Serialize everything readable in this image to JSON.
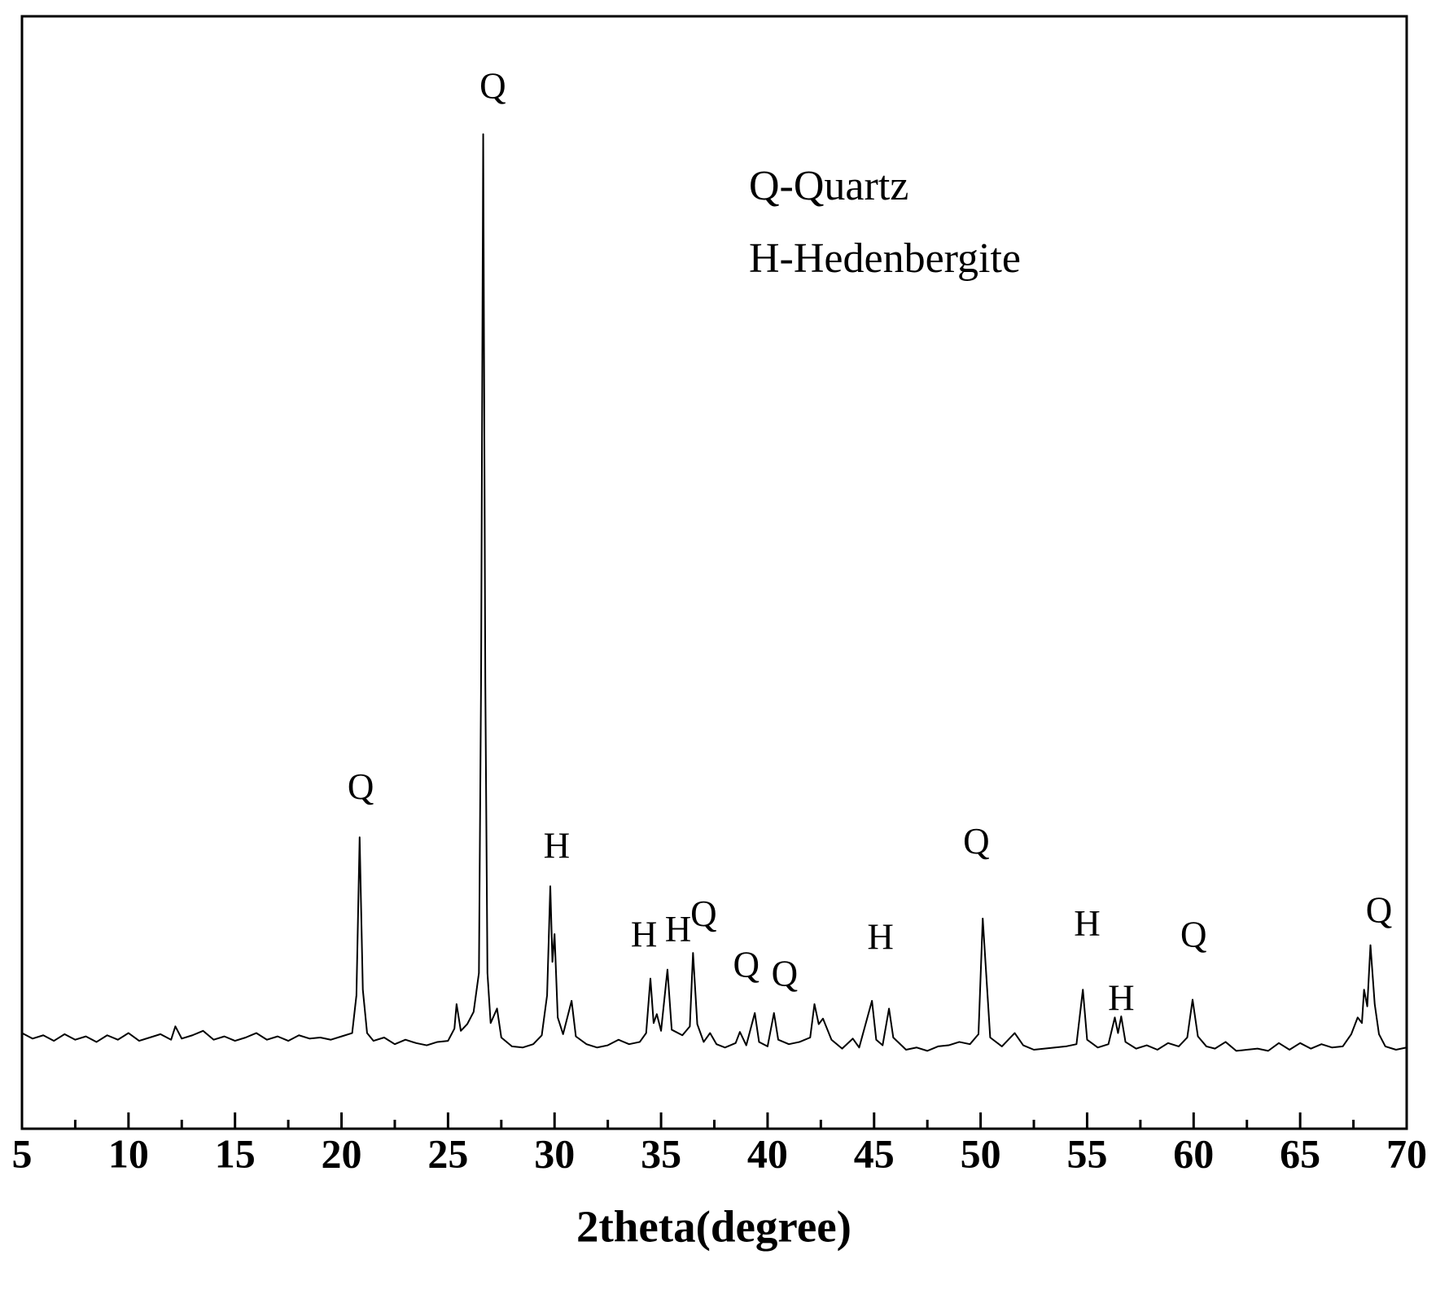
{
  "chart_data": {
    "type": "line",
    "xlabel": "2theta(degree)",
    "notes": [
      "Q-Quartz",
      "H-Hedenbergite"
    ],
    "xlim": [
      5,
      70
    ],
    "ylim": [
      0,
      100
    ],
    "xticks": [
      5,
      10,
      15,
      20,
      25,
      30,
      35,
      40,
      45,
      50,
      55,
      60,
      65,
      70
    ],
    "xminorticks": [
      7.5,
      12.5,
      17.5,
      22.5,
      27.5,
      32.5,
      37.5,
      42.5,
      47.5,
      52.5,
      57.5,
      62.5,
      67.5
    ],
    "color": "#000000",
    "x": [
      5,
      5.5,
      6,
      6.5,
      7,
      7.5,
      8,
      8.5,
      9,
      9.5,
      10,
      10.5,
      11,
      11.5,
      12,
      12.2,
      12.5,
      13,
      13.5,
      14,
      14.5,
      15,
      15.5,
      16,
      16.5,
      17,
      17.5,
      18,
      18.5,
      19,
      19.5,
      20,
      20.5,
      20.7,
      20.85,
      21.0,
      21.2,
      21.5,
      22,
      22.5,
      23,
      23.5,
      24,
      24.5,
      25,
      25.3,
      25.4,
      25.6,
      25.9,
      26.2,
      26.45,
      26.55,
      26.65,
      26.75,
      26.85,
      27.0,
      27.3,
      27.5,
      28,
      28.5,
      29,
      29.4,
      29.65,
      29.8,
      29.9,
      30.0,
      30.15,
      30.4,
      30.8,
      31.0,
      31.5,
      32,
      32.5,
      33,
      33.5,
      34,
      34.3,
      34.5,
      34.65,
      34.8,
      35.0,
      35.3,
      35.5,
      36.0,
      36.35,
      36.5,
      36.7,
      37,
      37.3,
      37.6,
      38,
      38.5,
      38.7,
      39.0,
      39.4,
      39.6,
      40,
      40.3,
      40.5,
      41,
      41.5,
      42,
      42.2,
      42.4,
      42.6,
      43,
      43.5,
      44,
      44.3,
      44.9,
      45.1,
      45.4,
      45.7,
      45.9,
      46.5,
      47,
      47.5,
      48,
      48.5,
      49,
      49.5,
      49.9,
      50.1,
      50.25,
      50.45,
      51,
      51.6,
      52,
      52.5,
      53,
      53.5,
      54,
      54.5,
      54.8,
      55.0,
      55.5,
      56,
      56.3,
      56.45,
      56.6,
      56.8,
      57.3,
      57.8,
      58.3,
      58.8,
      59.3,
      59.7,
      59.95,
      60.2,
      60.6,
      61,
      61.5,
      62,
      62.5,
      63,
      63.5,
      64,
      64.5,
      65,
      65.5,
      66,
      66.5,
      67,
      67.4,
      67.7,
      67.9,
      68.0,
      68.15,
      68.3,
      68.5,
      68.7,
      69,
      69.5,
      70
    ],
    "values": [
      8.6,
      8.1,
      8.4,
      7.9,
      8.5,
      8.0,
      8.3,
      7.8,
      8.4,
      8.0,
      8.6,
      7.9,
      8.2,
      8.5,
      8.0,
      9.2,
      8.1,
      8.4,
      8.8,
      8.0,
      8.3,
      7.9,
      8.2,
      8.6,
      8.0,
      8.3,
      7.9,
      8.4,
      8.1,
      8.2,
      8.0,
      8.3,
      8.6,
      12.0,
      26.2,
      12.5,
      8.6,
      7.9,
      8.2,
      7.6,
      8.0,
      7.7,
      7.5,
      7.8,
      7.9,
      9.0,
      11.2,
      8.8,
      9.4,
      10.5,
      14,
      40,
      89.4,
      40,
      14,
      9.5,
      10.8,
      8.2,
      7.4,
      7.3,
      7.6,
      8.4,
      12,
      21.8,
      15,
      17.5,
      10,
      8.5,
      11.5,
      8.3,
      7.6,
      7.3,
      7.5,
      8.0,
      7.6,
      7.8,
      8.6,
      13.5,
      9.5,
      10.3,
      8.8,
      14.3,
      8.9,
      8.4,
      9.2,
      15.8,
      9.4,
      7.8,
      8.6,
      7.6,
      7.3,
      7.7,
      8.7,
      7.5,
      10.4,
      7.8,
      7.4,
      10.4,
      8.0,
      7.6,
      7.8,
      8.2,
      11.2,
      9.4,
      9.9,
      8.0,
      7.2,
      8.1,
      7.3,
      11.5,
      8.0,
      7.5,
      10.8,
      8.2,
      7.1,
      7.3,
      7.0,
      7.4,
      7.5,
      7.8,
      7.6,
      8.5,
      18.9,
      14.3,
      8.2,
      7.4,
      8.6,
      7.5,
      7.1,
      7.2,
      7.3,
      7.4,
      7.6,
      12.5,
      8.0,
      7.3,
      7.6,
      10.0,
      8.6,
      10.1,
      7.8,
      7.2,
      7.5,
      7.1,
      7.7,
      7.4,
      8.2,
      11.6,
      8.3,
      7.4,
      7.2,
      7.8,
      7.0,
      7.1,
      7.2,
      7.0,
      7.7,
      7.1,
      7.7,
      7.2,
      7.6,
      7.3,
      7.4,
      8.5,
      10.0,
      9.5,
      12.5,
      11.0,
      16.5,
      11.2,
      8.5,
      7.4,
      7.1,
      7.3
    ],
    "annotations": [
      {
        "text": "Q",
        "x": 27.1,
        "y": 93.4
      },
      {
        "text": "Q",
        "x": 20.9,
        "y": 30.4
      },
      {
        "text": "H",
        "x": 30.1,
        "y": 25.1
      },
      {
        "text": "H",
        "x": 34.2,
        "y": 17.1
      },
      {
        "text": "H",
        "x": 35.8,
        "y": 17.6
      },
      {
        "text": "Q",
        "x": 37.0,
        "y": 19.0
      },
      {
        "text": "Q",
        "x": 39.0,
        "y": 14.4
      },
      {
        "text": "Q",
        "x": 40.8,
        "y": 13.6
      },
      {
        "text": "H",
        "x": 45.3,
        "y": 16.9
      },
      {
        "text": "Q",
        "x": 49.8,
        "y": 25.5
      },
      {
        "text": "H",
        "x": 55.0,
        "y": 18.1
      },
      {
        "text": "H",
        "x": 56.6,
        "y": 11.4
      },
      {
        "text": "Q",
        "x": 60.0,
        "y": 17.1
      },
      {
        "text": "Q",
        "x": 68.7,
        "y": 19.3
      }
    ]
  }
}
